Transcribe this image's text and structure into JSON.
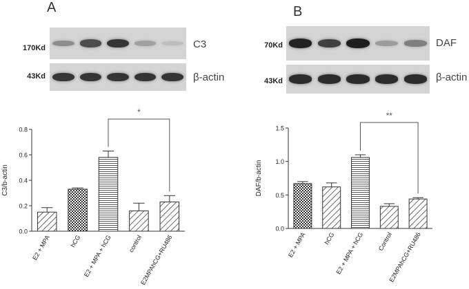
{
  "panels": [
    {
      "letter": "A",
      "blot_top": {
        "marker": "170Kd",
        "protein": "C3",
        "intensities": [
          0.38,
          0.72,
          0.85,
          0.28,
          0.12
        ]
      },
      "blot_bottom": {
        "marker": "43Kd",
        "protein": "β-actin",
        "intensities": [
          0.85,
          0.85,
          0.85,
          0.85,
          0.85
        ]
      }
    },
    {
      "letter": "B",
      "blot_top": {
        "marker": "70Kd",
        "protein": "DAF",
        "intensities": [
          0.95,
          0.8,
          0.98,
          0.3,
          0.45
        ]
      },
      "blot_bottom": {
        "marker": "43Kd",
        "protein": "β-actin",
        "intensities": [
          0.9,
          0.9,
          0.9,
          0.9,
          0.9
        ]
      }
    }
  ],
  "chart_data": [
    {
      "type": "bar",
      "categories": [
        "E2 + MPA",
        "hCG",
        "E2 + MPA + hCG",
        "control",
        "E2MPAhCG+RU486"
      ],
      "values": [
        0.15,
        0.33,
        0.58,
        0.16,
        0.23
      ],
      "errors": [
        0.035,
        0.01,
        0.05,
        0.06,
        0.05
      ],
      "ylabel": "C3/b-actin",
      "ylim": [
        0,
        0.8
      ],
      "yticks": [
        "0.0",
        "0.2",
        "0.4",
        "0.6",
        "0.8"
      ],
      "patterns": [
        "diag",
        "checker",
        "hlines",
        "diag",
        "diag"
      ],
      "significance": {
        "from_index": 2,
        "to_index": 4,
        "label": "*"
      }
    },
    {
      "type": "bar",
      "categories": [
        "E2 + MPA",
        "hCG",
        "E2 + MPA + hCG",
        "Control",
        "E2MPAhCG+RU486"
      ],
      "values": [
        0.67,
        0.62,
        1.06,
        0.33,
        0.44
      ],
      "errors": [
        0.03,
        0.06,
        0.04,
        0.04,
        0.02
      ],
      "ylabel": "DAF/b-actin",
      "ylim": [
        0,
        1.5
      ],
      "yticks": [
        "0.0",
        "0.5",
        "1.0",
        "1.5"
      ],
      "patterns": [
        "checker",
        "diag",
        "hlines",
        "diag",
        "diag"
      ],
      "significance": {
        "from_index": 2,
        "to_index": 4,
        "label": "**"
      }
    }
  ]
}
